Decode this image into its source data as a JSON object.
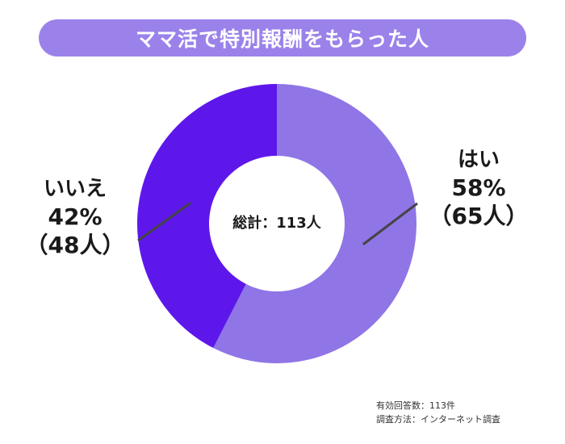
{
  "title": "ママ活で特別報酬をもらった人",
  "center_label": "総計：113人",
  "footnotes": {
    "respondents": "有効回答数：113件",
    "method": "調査方法：インターネット調査"
  },
  "labels": {
    "yes": {
      "name": "はい",
      "percent": "58%",
      "count": "（65人）"
    },
    "no": {
      "name": "いいえ",
      "percent": "42%",
      "count": "（48人）"
    }
  },
  "colors": {
    "banner": "#9b82ea",
    "yes": "#9075e6",
    "no": "#5e17eb",
    "leader": "#444444"
  },
  "chart_data": {
    "type": "pie",
    "donut": true,
    "title": "ママ活で特別報酬をもらった人",
    "categories": [
      "はい",
      "いいえ"
    ],
    "values": [
      65,
      48
    ],
    "percentages": [
      58,
      42
    ],
    "total": 113
  }
}
